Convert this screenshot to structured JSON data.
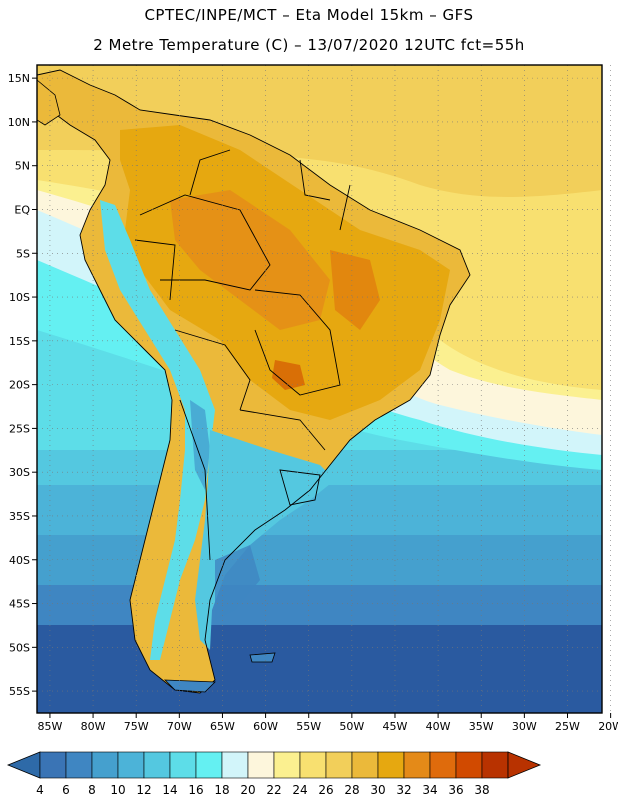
{
  "header": {
    "line1": "CPTEC/INPE/MCT –  Eta Model 15km – GFS",
    "line2": "2 Metre Temperature (C) – 13/07/2020 12UTC fct=55h"
  },
  "map": {
    "variable": "2 Metre Temperature",
    "units": "C",
    "region": "South America",
    "lat_ticks": [
      "15N",
      "10N",
      "5N",
      "EQ",
      "5S",
      "10S",
      "15S",
      "20S",
      "25S",
      "30S",
      "35S",
      "40S",
      "45S",
      "50S",
      "55S"
    ],
    "lon_ticks": [
      "85W",
      "80W",
      "75W",
      "70W",
      "65W",
      "60W",
      "55W",
      "50W",
      "45W",
      "40W",
      "35W",
      "30W",
      "25W",
      "20W"
    ],
    "lat_range": [
      -57.5,
      16.5
    ],
    "lon_range": [
      -86.5,
      -21
    ]
  },
  "colorbar": {
    "labels": [
      "4",
      "6",
      "8",
      "10",
      "12",
      "14",
      "16",
      "18",
      "20",
      "22",
      "24",
      "26",
      "28",
      "30",
      "32",
      "34",
      "36",
      "38"
    ],
    "colors": [
      "#3a74b5",
      "#3f86c2",
      "#45a0ce",
      "#4cb3d8",
      "#54c8e0",
      "#5ddde8",
      "#64f0f2",
      "#d2f5fa",
      "#fdf6dc",
      "#fbf090",
      "#f8e070",
      "#f2cf5a",
      "#ebb93a",
      "#e6a810",
      "#e48a18",
      "#df6b0c",
      "#d14a00",
      "#b83200"
    ],
    "low_color": "#2e6aa8",
    "high_color": "#b83200"
  },
  "palette": {
    "ocean_cold": "#2a5aa0",
    "ocean_mid": "#45a0ce",
    "ocean_cool": "#5ddde8",
    "ocean_mild": "#d2f5fa",
    "ocean_warm": "#f2cf5a",
    "land_hot": "#e6a810",
    "border": "#000000"
  }
}
